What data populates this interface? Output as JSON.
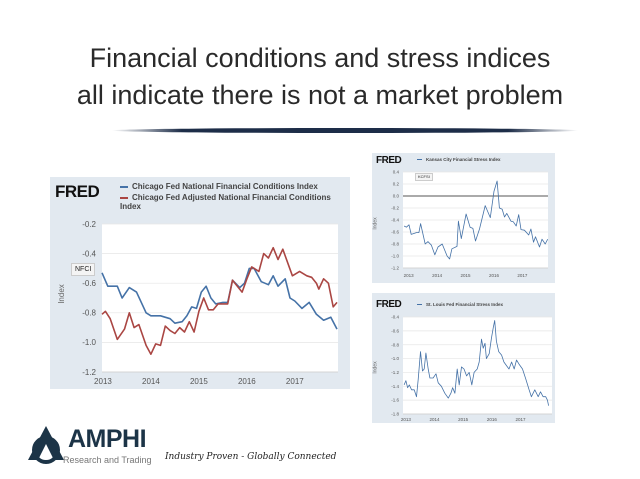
{
  "slide": {
    "title_line1": "Financial conditions and stress indices",
    "title_line2": "all indicate there is not a market problem"
  },
  "footer": {
    "logo": "AMPHI",
    "logo_sub": "Research and Trading",
    "tagline": "Industry Proven - Globally Connected"
  },
  "chart_data": [
    {
      "type": "line",
      "brand": "FRED",
      "title": "",
      "ylabel": "Index",
      "xlim": [
        2012.98,
        2017.9
      ],
      "ylim": [
        -1.2,
        -0.2
      ],
      "yticks": [
        "-0.2",
        "-0.4",
        "-0.6",
        "-0.8",
        "-1.0",
        "-1.2"
      ],
      "xticks": [
        "2013",
        "2014",
        "2015",
        "2016",
        "2017"
      ],
      "tooltip": "NFCI",
      "grid": true,
      "legend": "top",
      "series": [
        {
          "name": "Chicago Fed National Financial Conditions Index",
          "color": "#4572a7",
          "x": [
            2012.98,
            2013.1,
            2013.3,
            2013.4,
            2013.55,
            2013.7,
            2013.9,
            2014.0,
            2014.2,
            2014.4,
            2014.5,
            2014.65,
            2014.75,
            2014.85,
            2014.95,
            2015.05,
            2015.15,
            2015.25,
            2015.35,
            2015.5,
            2015.6,
            2015.7,
            2015.85,
            2015.95,
            2016.05,
            2016.15,
            2016.3,
            2016.45,
            2016.55,
            2016.65,
            2016.8,
            2016.9,
            2017.0,
            2017.15,
            2017.3,
            2017.45,
            2017.6,
            2017.75,
            2017.88
          ],
          "y": [
            -0.53,
            -0.62,
            -0.62,
            -0.7,
            -0.63,
            -0.66,
            -0.8,
            -0.82,
            -0.82,
            -0.84,
            -0.87,
            -0.86,
            -0.82,
            -0.76,
            -0.77,
            -0.66,
            -0.62,
            -0.7,
            -0.74,
            -0.73,
            -0.73,
            -0.58,
            -0.63,
            -0.6,
            -0.5,
            -0.5,
            -0.59,
            -0.61,
            -0.55,
            -0.62,
            -0.57,
            -0.7,
            -0.72,
            -0.77,
            -0.73,
            -0.81,
            -0.85,
            -0.83,
            -0.91
          ]
        },
        {
          "name": "Chicago Fed Adjusted National Financial Conditions Index",
          "color": "#aa4643",
          "x": [
            2012.98,
            2013.05,
            2013.15,
            2013.3,
            2013.45,
            2013.55,
            2013.65,
            2013.75,
            2013.9,
            2014.0,
            2014.1,
            2014.2,
            2014.3,
            2014.4,
            2014.5,
            2014.6,
            2014.7,
            2014.8,
            2014.9,
            2015.0,
            2015.1,
            2015.2,
            2015.3,
            2015.4,
            2015.6,
            2015.7,
            2015.9,
            2016.0,
            2016.1,
            2016.25,
            2016.35,
            2016.45,
            2016.55,
            2016.65,
            2016.75,
            2016.95,
            2017.1,
            2017.25,
            2017.35,
            2017.45,
            2017.5,
            2017.6,
            2017.7,
            2017.8,
            2017.88
          ],
          "y": [
            -0.81,
            -0.79,
            -0.84,
            -0.98,
            -0.91,
            -0.8,
            -0.9,
            -0.88,
            -1.02,
            -1.08,
            -1.01,
            -1.02,
            -0.89,
            -0.92,
            -0.94,
            -0.9,
            -0.93,
            -0.86,
            -0.93,
            -0.79,
            -0.7,
            -0.78,
            -0.78,
            -0.74,
            -0.74,
            -0.58,
            -0.66,
            -0.57,
            -0.49,
            -0.52,
            -0.4,
            -0.43,
            -0.36,
            -0.44,
            -0.37,
            -0.55,
            -0.52,
            -0.55,
            -0.56,
            -0.6,
            -0.64,
            -0.57,
            -0.6,
            -0.76,
            -0.73
          ]
        }
      ]
    },
    {
      "type": "line",
      "brand": "FRED",
      "ylabel": "Index",
      "xlim": [
        2012.8,
        2017.9
      ],
      "ylim": [
        -1.2,
        0.4
      ],
      "yticks": [
        "0.4",
        "0.2",
        "0.0",
        "-0.2",
        "-0.4",
        "-0.6",
        "-0.8",
        "-1.0",
        "-1.2"
      ],
      "xticks": [
        "2013",
        "2014",
        "2015",
        "2016",
        "2017"
      ],
      "tooltip": "KCFSI",
      "grid": true,
      "zero_line": true,
      "legend": "top",
      "series": [
        {
          "name": "Kansas City Financial Stress Index",
          "color": "#4572a7",
          "x": [
            2012.84,
            2012.92,
            2013.01,
            2013.09,
            2013.27,
            2013.36,
            2013.42,
            2013.58,
            2013.68,
            2013.8,
            2013.92,
            2014.03,
            2014.18,
            2014.35,
            2014.44,
            2014.52,
            2014.7,
            2014.75,
            2014.85,
            2015.02,
            2015.16,
            2015.26,
            2015.35,
            2015.49,
            2015.69,
            2015.87,
            2016.0,
            2016.11,
            2016.19,
            2016.29,
            2016.37,
            2016.45,
            2016.6,
            2016.68,
            2016.78,
            2016.87,
            2016.95,
            2017.07,
            2017.22,
            2017.3,
            2017.39,
            2017.46,
            2017.6,
            2017.69,
            2017.8,
            2017.89
          ],
          "y": [
            -0.5,
            -0.52,
            -0.48,
            -0.64,
            -0.61,
            -0.61,
            -0.46,
            -0.8,
            -0.76,
            -0.82,
            -0.98,
            -0.85,
            -0.8,
            -1.0,
            -1.05,
            -0.88,
            -0.84,
            -0.42,
            -0.71,
            -0.3,
            -0.52,
            -0.54,
            -0.75,
            -0.55,
            -0.16,
            -0.36,
            0.08,
            0.25,
            -0.2,
            -0.22,
            -0.35,
            -0.29,
            -0.42,
            -0.43,
            -0.5,
            -0.31,
            -0.56,
            -0.57,
            -0.65,
            -0.55,
            -0.77,
            -0.68,
            -0.85,
            -0.72,
            -0.8,
            -0.72
          ]
        }
      ]
    },
    {
      "type": "line",
      "brand": "FRED",
      "ylabel": "Index",
      "xlim": [
        2012.9,
        2018.1
      ],
      "ylim": [
        -1.8,
        -0.4
      ],
      "yticks": [
        "-0.4",
        "-0.6",
        "-0.8",
        "-1.0",
        "-1.2",
        "-1.4",
        "-1.6",
        "-1.8"
      ],
      "xticks": [
        "2013",
        "2014",
        "2015",
        "2016",
        "2017"
      ],
      "grid": true,
      "legend": "top",
      "series": [
        {
          "name": "St. Louis Fed Financial Stress Index",
          "color": "#4572a7",
          "x": [
            2012.94,
            2013.0,
            2013.06,
            2013.12,
            2013.2,
            2013.29,
            2013.37,
            2013.43,
            2013.51,
            2013.58,
            2013.64,
            2013.7,
            2013.78,
            2013.84,
            2013.95,
            2014.05,
            2014.13,
            2014.24,
            2014.36,
            2014.48,
            2014.57,
            2014.63,
            2014.71,
            2014.79,
            2014.86,
            2014.94,
            2015.03,
            2015.12,
            2015.21,
            2015.3,
            2015.38,
            2015.49,
            2015.56,
            2015.64,
            2015.7,
            2015.76,
            2015.81,
            2015.91,
            2015.99,
            2016.05,
            2016.1,
            2016.16,
            2016.24,
            2016.34,
            2016.42,
            2016.51,
            2016.6,
            2016.69,
            2016.78,
            2016.86,
            2016.95,
            2017.07,
            2017.19,
            2017.3,
            2017.38,
            2017.5,
            2017.62,
            2017.7,
            2017.79,
            2017.88,
            2017.94,
            2017.98
          ],
          "y": [
            -1.38,
            -1.32,
            -1.42,
            -1.38,
            -1.45,
            -1.45,
            -1.55,
            -1.3,
            -0.9,
            -1.18,
            -1.15,
            -0.92,
            -1.15,
            -1.28,
            -1.28,
            -1.22,
            -1.35,
            -1.4,
            -1.5,
            -1.57,
            -1.5,
            -1.42,
            -1.5,
            -1.15,
            -1.38,
            -1.12,
            -1.15,
            -1.25,
            -1.2,
            -1.38,
            -1.2,
            -1.15,
            -1.05,
            -0.72,
            -0.85,
            -0.78,
            -1.0,
            -0.93,
            -0.7,
            -0.55,
            -0.45,
            -0.75,
            -0.9,
            -0.95,
            -1.05,
            -1.1,
            -1.15,
            -1.05,
            -1.15,
            -1.02,
            -1.08,
            -1.15,
            -1.3,
            -1.45,
            -1.55,
            -1.45,
            -1.55,
            -1.48,
            -1.55,
            -1.55,
            -1.6,
            -1.68
          ]
        }
      ]
    }
  ]
}
